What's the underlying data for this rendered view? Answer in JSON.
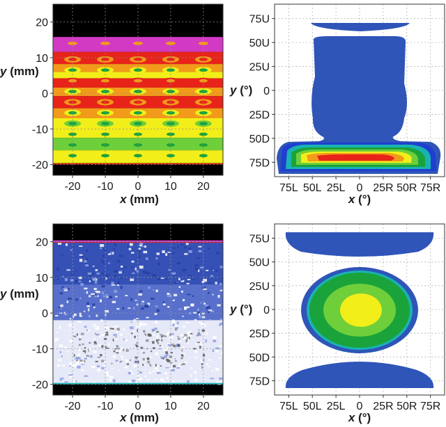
{
  "colors": {
    "blue": "#2f55b8",
    "green": "#1aa33a",
    "light_green": "#6fcf3a",
    "yellow": "#f2ee1a",
    "orange": "#f29a1a",
    "red": "#e8231a",
    "magenta": "#d23ac4",
    "teal": "#1ab3b3",
    "black": "#000000"
  },
  "chart_data": [
    {
      "type": "heatmap",
      "panel": "top-left",
      "xlabel_var": "x",
      "xlabel_unit": " (mm)",
      "ylabel_var": "y",
      "ylabel_unit": " (mm)",
      "xlim": [
        -26,
        26
      ],
      "ylim": [
        -23,
        25
      ],
      "xticks": [
        -20,
        -10,
        0,
        10,
        20
      ],
      "yticks": [
        20,
        10,
        0,
        -10,
        -20
      ],
      "grid": true,
      "description_levels": [
        "magenta",
        "red",
        "orange",
        "yellow",
        "light green",
        "green"
      ],
      "band_rows_y": [
        14,
        9.5,
        6.5,
        3.5,
        0.5,
        -2.5,
        -5.5,
        -8.5,
        -11.5,
        -14.5,
        -17.5
      ],
      "spot_columns_x": [
        -20,
        -10,
        0,
        10,
        20
      ]
    },
    {
      "type": "heatmap",
      "panel": "top-right",
      "xlabel_var": "x",
      "xlabel_unit": " (°)",
      "ylabel_var": "y",
      "ylabel_unit": " (°)",
      "xlim": [
        -90,
        90
      ],
      "ylim": [
        -90,
        90
      ],
      "xticks": [
        "75L",
        "50L",
        "25L",
        "0",
        "25R",
        "50R",
        "75R"
      ],
      "xtick_values": [
        -75,
        -50,
        -25,
        0,
        25,
        50,
        75
      ],
      "yticks": [
        "75U",
        "50U",
        "25U",
        "0",
        "25D",
        "50D",
        "75D"
      ],
      "ytick_values": [
        75,
        50,
        25,
        0,
        -25,
        -50,
        -75
      ],
      "grid": true
    },
    {
      "type": "heatmap",
      "panel": "bottom-left",
      "xlabel_var": "x",
      "xlabel_unit": " (mm)",
      "ylabel_var": "y",
      "ylabel_unit": " (mm)",
      "xlim": [
        -26,
        26
      ],
      "ylim": [
        -23,
        25
      ],
      "xticks": [
        -20,
        -10,
        0,
        10,
        20
      ],
      "yticks": [
        20,
        10,
        0,
        -10,
        -20
      ],
      "grid": true
    },
    {
      "type": "heatmap",
      "panel": "bottom-right",
      "xlabel_var": "x",
      "xlabel_unit": " (°)",
      "ylabel_var": "y",
      "ylabel_unit": " (°)",
      "xlim": [
        -90,
        90
      ],
      "ylim": [
        -90,
        90
      ],
      "xticks": [
        "75L",
        "50L",
        "25L",
        "0",
        "25R",
        "50R",
        "75R"
      ],
      "xtick_values": [
        -75,
        -50,
        -25,
        0,
        25,
        50,
        75
      ],
      "yticks": [
        "75U",
        "50U",
        "25U",
        "0",
        "25D",
        "50D",
        "75D"
      ],
      "ytick_values": [
        75,
        50,
        25,
        0,
        -25,
        -50,
        -75
      ],
      "grid": true
    }
  ]
}
